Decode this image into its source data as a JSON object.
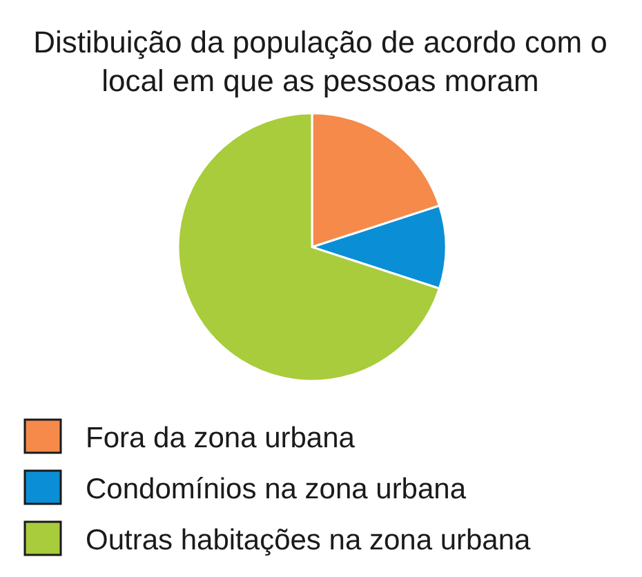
{
  "chart_data": {
    "type": "pie",
    "title": "Distibuição da população de acordo com o local em que as pessoas moram",
    "categories": [
      "Fora da zona urbana",
      "Condomínios na zona urbana",
      "Outras habitações na zona urbana"
    ],
    "values": [
      20,
      10,
      70
    ],
    "colors": [
      "#f58a4b",
      "#0a8fd6",
      "#a8cc3c"
    ],
    "legend": "bottom"
  }
}
